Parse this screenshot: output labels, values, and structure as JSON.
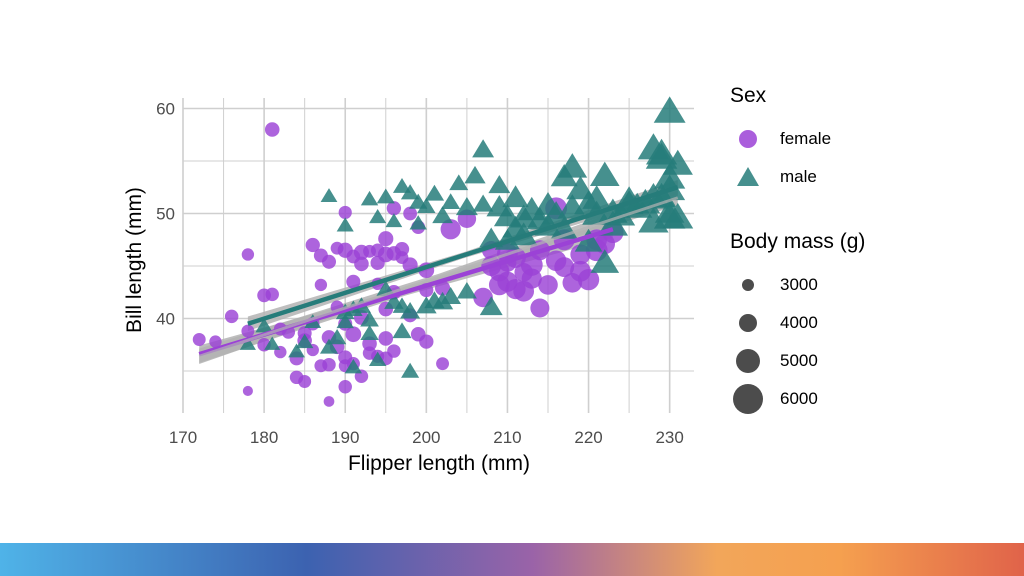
{
  "colors": {
    "female": "#9b42d6",
    "male": "#267c7a",
    "ci_band": "#b3b3b3",
    "grid": "#cfcfcf",
    "size_key": "#333333"
  },
  "chart_data": {
    "type": "scatter",
    "title": "",
    "xlabel": "Flipper length (mm)",
    "ylabel": "Bill length (mm)",
    "xlim": [
      170,
      233
    ],
    "ylim": [
      31,
      61
    ],
    "x_ticks": [
      170,
      180,
      190,
      200,
      210,
      220,
      230
    ],
    "y_ticks": [
      40,
      50,
      60
    ],
    "grid": true,
    "legend_position": "right",
    "shape_legend": {
      "title": "Sex",
      "entries": [
        {
          "label": "female",
          "shape": "circle"
        },
        {
          "label": "male",
          "shape": "triangle"
        }
      ]
    },
    "size_legend": {
      "title": "Body mass (g)",
      "entries": [
        {
          "label": "3000",
          "value": 3000
        },
        {
          "label": "4000",
          "value": 4000
        },
        {
          "label": "5000",
          "value": 5000
        },
        {
          "label": "6000",
          "value": 6000
        }
      ]
    },
    "series": [
      {
        "name": "female",
        "shape": "circle",
        "points": [
          [
            172,
            38,
            3400
          ],
          [
            174,
            37.8,
            3300
          ],
          [
            176,
            40.2,
            3500
          ],
          [
            178,
            33.1,
            2900
          ],
          [
            178,
            46.1,
            3300
          ],
          [
            178,
            38.8,
            3400
          ],
          [
            180,
            37.5,
            3500
          ],
          [
            180,
            42.2,
            3550
          ],
          [
            181,
            58,
            3700
          ],
          [
            181,
            42.3,
            3500
          ],
          [
            182,
            39,
            3400
          ],
          [
            182,
            36.8,
            3300
          ],
          [
            183,
            38.7,
            3450
          ],
          [
            184,
            34.4,
            3500
          ],
          [
            184,
            36.2,
            3600
          ],
          [
            185,
            37.9,
            3700
          ],
          [
            185,
            34,
            3400
          ],
          [
            185,
            38.6,
            3600
          ],
          [
            186,
            39.5,
            3500
          ],
          [
            186,
            37,
            3300
          ],
          [
            186,
            47,
            3650
          ],
          [
            187,
            35.5,
            3400
          ],
          [
            187,
            46,
            3600
          ],
          [
            187,
            43.2,
            3300
          ],
          [
            188,
            45.4,
            3600
          ],
          [
            188,
            35.6,
            3500
          ],
          [
            188,
            38.2,
            3700
          ],
          [
            188,
            32.1,
            3000
          ],
          [
            189,
            41.1,
            3400
          ],
          [
            189,
            37.3,
            3700
          ],
          [
            189,
            46.7,
            3400
          ],
          [
            190,
            36.3,
            3600
          ],
          [
            190,
            33.5,
            3500
          ],
          [
            190,
            35.5,
            3400
          ],
          [
            190,
            50.1,
            3450
          ],
          [
            190,
            39.5,
            3600
          ],
          [
            190,
            46.5,
            3800
          ],
          [
            191,
            45.9,
            3550
          ],
          [
            191,
            38.5,
            3900
          ],
          [
            191,
            43.5,
            3600
          ],
          [
            191,
            35.7,
            3450
          ],
          [
            192,
            45.2,
            3700
          ],
          [
            192,
            46.3,
            3800
          ],
          [
            192,
            34.5,
            3500
          ],
          [
            192,
            40.1,
            3750
          ],
          [
            193,
            36.7,
            3500
          ],
          [
            193,
            46.4,
            3400
          ],
          [
            193,
            37.6,
            3700
          ],
          [
            194,
            45.3,
            3650
          ],
          [
            194,
            36.4,
            3450
          ],
          [
            194,
            46.5,
            3500
          ],
          [
            194,
            43.3,
            3300
          ],
          [
            195,
            36.2,
            3550
          ],
          [
            195,
            40.9,
            3700
          ],
          [
            195,
            46.1,
            3900
          ],
          [
            195,
            38.1,
            3700
          ],
          [
            195,
            47.6,
            3800
          ],
          [
            196,
            50.5,
            3650
          ],
          [
            196,
            36.9,
            3500
          ],
          [
            196,
            42.5,
            3700
          ],
          [
            196,
            46.2,
            3700
          ],
          [
            197,
            46.6,
            3650
          ],
          [
            197,
            45.8,
            3400
          ],
          [
            198,
            50,
            3550
          ],
          [
            198,
            45.1,
            3800
          ],
          [
            198,
            40.3,
            3600
          ],
          [
            199,
            38.5,
            3700
          ],
          [
            199,
            48.7,
            3550
          ],
          [
            200,
            37.8,
            3650
          ],
          [
            200,
            42.7,
            3600
          ],
          [
            200,
            44.6,
            3900
          ],
          [
            202,
            35.7,
            3400
          ],
          [
            202,
            42.9,
            3800
          ],
          [
            203,
            48.5,
            4700
          ],
          [
            205,
            49.5,
            4400
          ],
          [
            207,
            42,
            4600
          ],
          [
            208,
            45,
            4650
          ],
          [
            208,
            46.5,
            4400
          ],
          [
            209,
            44.5,
            4700
          ],
          [
            209,
            43.2,
            4800
          ],
          [
            210,
            45.3,
            4300
          ],
          [
            210,
            46.2,
            4800
          ],
          [
            210,
            43.5,
            4700
          ],
          [
            211,
            42.8,
            4700
          ],
          [
            211,
            45.8,
            4800
          ],
          [
            212,
            44.4,
            4400
          ],
          [
            212,
            42.6,
            4800
          ],
          [
            213,
            45.1,
            5000
          ],
          [
            213,
            43.8,
            4700
          ],
          [
            214,
            41,
            4500
          ],
          [
            214,
            46.5,
            4650
          ],
          [
            215,
            43.2,
            4600
          ],
          [
            216,
            45.5,
            4750
          ],
          [
            216,
            50.5,
            5000
          ],
          [
            217,
            44.9,
            4650
          ],
          [
            217,
            47.5,
            4850
          ],
          [
            218,
            43.4,
            4600
          ],
          [
            219,
            46.1,
            4700
          ],
          [
            219,
            44.5,
            4800
          ],
          [
            220,
            43.7,
            4900
          ],
          [
            221,
            46.5,
            5000
          ],
          [
            221,
            47.5,
            4800
          ],
          [
            222,
            47.1,
            4750
          ],
          [
            223,
            48.2,
            4900
          ]
        ]
      },
      {
        "name": "male",
        "shape": "triangle",
        "points": [
          [
            178,
            37.5,
            3600
          ],
          [
            180,
            39.2,
            3800
          ],
          [
            181,
            37.5,
            3600
          ],
          [
            184,
            36.8,
            3700
          ],
          [
            185,
            37.7,
            3800
          ],
          [
            186,
            39.6,
            3700
          ],
          [
            188,
            37.2,
            3900
          ],
          [
            188,
            51.6,
            3700
          ],
          [
            189,
            38.1,
            3950
          ],
          [
            190,
            40.5,
            4000
          ],
          [
            190,
            39.6,
            3800
          ],
          [
            190,
            48.8,
            3750
          ],
          [
            191,
            40.8,
            4000
          ],
          [
            191,
            35.3,
            3800
          ],
          [
            192,
            41.1,
            4050
          ],
          [
            193,
            51.3,
            3800
          ],
          [
            193,
            39.8,
            4000
          ],
          [
            193,
            38.5,
            3950
          ],
          [
            194,
            49.6,
            3750
          ],
          [
            194,
            36,
            3800
          ],
          [
            195,
            51.5,
            3900
          ],
          [
            195,
            42.7,
            4000
          ],
          [
            196,
            41.5,
            4100
          ],
          [
            196,
            49.2,
            3700
          ],
          [
            197,
            52.5,
            3900
          ],
          [
            197,
            38.7,
            4050
          ],
          [
            197,
            41.1,
            4000
          ],
          [
            198,
            51.9,
            3950
          ],
          [
            198,
            34.9,
            3900
          ],
          [
            198,
            40.6,
            4200
          ],
          [
            199,
            51,
            3950
          ],
          [
            199,
            49,
            3800
          ],
          [
            200,
            41.1,
            4300
          ],
          [
            200,
            50.6,
            3950
          ],
          [
            201,
            51.8,
            4100
          ],
          [
            201,
            41.6,
            4250
          ],
          [
            202,
            49.7,
            4300
          ],
          [
            202,
            41.5,
            4400
          ],
          [
            203,
            51,
            4050
          ],
          [
            203,
            42,
            4300
          ],
          [
            204,
            52.8,
            4050
          ],
          [
            205,
            50.5,
            4500
          ],
          [
            205,
            42.5,
            4200
          ],
          [
            206,
            53.5,
            4400
          ],
          [
            207,
            56,
            4500
          ],
          [
            207,
            50.8,
            4300
          ],
          [
            208,
            47.5,
            4800
          ],
          [
            208,
            41,
            4650
          ],
          [
            209,
            52.6,
            4500
          ],
          [
            209,
            50.5,
            5100
          ],
          [
            210,
            49.6,
            5300
          ],
          [
            210,
            47.3,
            5000
          ],
          [
            211,
            51.4,
            5200
          ],
          [
            211,
            48.5,
            5200
          ],
          [
            212,
            49.5,
            5400
          ],
          [
            212,
            47.8,
            5400
          ],
          [
            213,
            50.2,
            5500
          ],
          [
            214,
            49.3,
            5300
          ],
          [
            215,
            50.7,
            5400
          ],
          [
            215,
            48.7,
            5300
          ],
          [
            216,
            49.8,
            5500
          ],
          [
            217,
            53.4,
            5300
          ],
          [
            217,
            48.4,
            5250
          ],
          [
            218,
            54.3,
            5700
          ],
          [
            218,
            50.4,
            5700
          ],
          [
            219,
            52.2,
            5500
          ],
          [
            220,
            50.8,
            5600
          ],
          [
            220,
            47.2,
            5400
          ],
          [
            221,
            51.3,
            5550
          ],
          [
            221,
            49.8,
            5600
          ],
          [
            222,
            53.5,
            5700
          ],
          [
            222,
            45.2,
            5550
          ],
          [
            223,
            50,
            5650
          ],
          [
            223,
            48.8,
            5800
          ],
          [
            224,
            49.7,
            5500
          ],
          [
            225,
            50.8,
            5600
          ],
          [
            225,
            51.1,
            5850
          ],
          [
            226,
            50.5,
            5800
          ],
          [
            227,
            50.9,
            5700
          ],
          [
            228,
            56.1,
            6000
          ],
          [
            228,
            51.4,
            5900
          ],
          [
            228,
            49.1,
            5800
          ],
          [
            229,
            55.2,
            6000
          ],
          [
            229,
            51.5,
            5650
          ],
          [
            230,
            59.6,
            6050
          ],
          [
            230,
            50,
            5700
          ],
          [
            230,
            52.2,
            5900
          ],
          [
            230,
            49.5,
            6000
          ],
          [
            230,
            53.3,
            5950
          ],
          [
            231,
            54.6,
            5800
          ],
          [
            231,
            49.5,
            5900
          ],
          [
            229,
            55.6,
            5950
          ]
        ]
      }
    ],
    "trend_lines": [
      {
        "series": "female",
        "x": [
          172,
          223
        ],
        "y": [
          36.6,
          48.5
        ]
      },
      {
        "series": "male",
        "x": [
          178,
          231
        ],
        "y": [
          39.5,
          52.5
        ]
      },
      {
        "series": "all",
        "x": [
          172,
          231
        ],
        "y": [
          36.4,
          51.5
        ]
      }
    ]
  }
}
